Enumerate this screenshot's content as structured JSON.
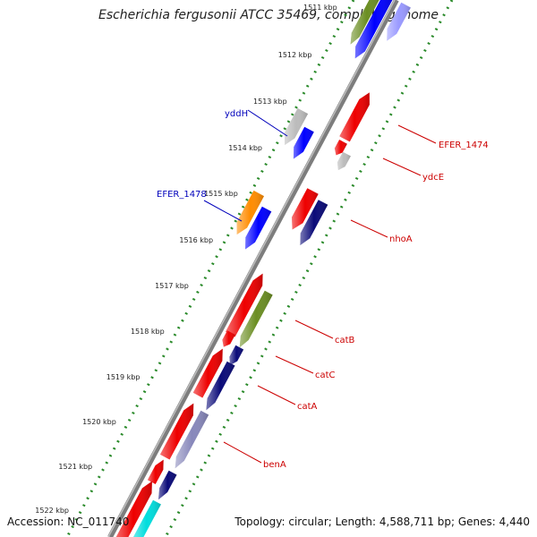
{
  "title": "Escherichia fergusonii ATCC 35469, complete genome",
  "accession": "Accession: NC_011740",
  "topology": "Topology: circular; Length: 4,588,711 bp; Genes: 4,440",
  "ticks": [
    "1511 kbp",
    "1512 kbp",
    "1513 kbp",
    "1514 kbp",
    "1515 kbp",
    "1516 kbp",
    "1517 kbp",
    "1518 kbp",
    "1519 kbp",
    "1520 kbp",
    "1521 kbp",
    "1522 kbp"
  ],
  "gene_labels": [
    {
      "text": "yddH",
      "side": "left",
      "color": "#0000bb"
    },
    {
      "text": "EFER_1478",
      "side": "left",
      "color": "#0000bb"
    },
    {
      "text": "EFER_1474",
      "side": "right",
      "color": "#cc0000"
    },
    {
      "text": "ydcE",
      "side": "right",
      "color": "#cc0000"
    },
    {
      "text": "nhoA",
      "side": "right",
      "color": "#cc0000"
    },
    {
      "text": "catB",
      "side": "right",
      "color": "#cc0000"
    },
    {
      "text": "catC",
      "side": "right",
      "color": "#cc0000"
    },
    {
      "text": "catA",
      "side": "right",
      "color": "#cc0000"
    },
    {
      "text": "benA",
      "side": "right",
      "color": "#cc0000"
    }
  ],
  "colors": {
    "backbone": "#8a8a8a",
    "tick_dots": "#2a8a2a",
    "cds": "#ee0000",
    "blue": "#0000ff",
    "navy": "#0a0a78",
    "olive": "#6b8e23",
    "orange": "#ff8c00",
    "gray": "#bbbbbb",
    "cyan": "#00dddd"
  }
}
